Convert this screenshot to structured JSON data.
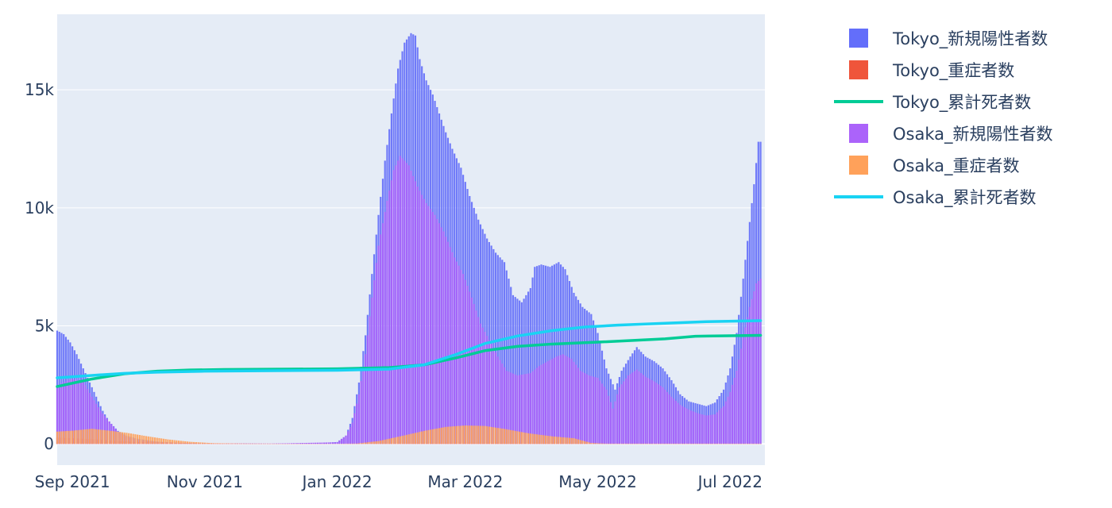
{
  "chart_data": {
    "type": "bar",
    "barmode": "overlay",
    "grid": true,
    "legend_position": "right",
    "x_range": [
      "2021-08-25",
      "2022-07-17"
    ],
    "y_range": [
      -900,
      18200
    ],
    "x_ticks": [
      {
        "date": "2021-09-01",
        "label": "Sep 2021"
      },
      {
        "date": "2021-11-01",
        "label": "Nov 2021"
      },
      {
        "date": "2022-01-01",
        "label": "Jan 2022"
      },
      {
        "date": "2022-03-01",
        "label": "Mar 2022"
      },
      {
        "date": "2022-05-01",
        "label": "May 2022"
      },
      {
        "date": "2022-07-01",
        "label": "Jul 2022"
      }
    ],
    "y_ticks": [
      {
        "value": 0,
        "label": "0"
      },
      {
        "value": 5000,
        "label": "5k"
      },
      {
        "value": 10000,
        "label": "10k"
      },
      {
        "value": 15000,
        "label": "15k"
      }
    ],
    "series": [
      {
        "name": "Tokyo_新規陽性者数",
        "kind": "bar",
        "color": "#636efa",
        "points": [
          [
            "2021-08-25",
            4800
          ],
          [
            "2021-08-28",
            4650
          ],
          [
            "2021-08-31",
            4300
          ],
          [
            "2021-09-03",
            3800
          ],
          [
            "2021-09-06",
            3200
          ],
          [
            "2021-09-09",
            2600
          ],
          [
            "2021-09-12",
            2000
          ],
          [
            "2021-09-15",
            1400
          ],
          [
            "2021-09-18",
            950
          ],
          [
            "2021-09-22",
            550
          ],
          [
            "2021-09-26",
            350
          ],
          [
            "2021-10-01",
            220
          ],
          [
            "2021-10-10",
            100
          ],
          [
            "2021-10-20",
            45
          ],
          [
            "2021-11-01",
            25
          ],
          [
            "2021-12-01",
            15
          ],
          [
            "2021-12-25",
            40
          ],
          [
            "2022-01-01",
            80
          ],
          [
            "2022-01-05",
            350
          ],
          [
            "2022-01-08",
            1100
          ],
          [
            "2022-01-11",
            2600
          ],
          [
            "2022-01-14",
            4600
          ],
          [
            "2022-01-17",
            7200
          ],
          [
            "2022-01-20",
            9700
          ],
          [
            "2022-01-23",
            12000
          ],
          [
            "2022-01-26",
            14000
          ],
          [
            "2022-01-29",
            15900
          ],
          [
            "2022-02-01",
            17000
          ],
          [
            "2022-02-04",
            17400
          ],
          [
            "2022-02-06",
            17300
          ],
          [
            "2022-02-08",
            16300
          ],
          [
            "2022-02-11",
            15400
          ],
          [
            "2022-02-14",
            14800
          ],
          [
            "2022-02-17",
            14000
          ],
          [
            "2022-02-20",
            13200
          ],
          [
            "2022-02-23",
            12500
          ],
          [
            "2022-02-27",
            11700
          ],
          [
            "2022-03-03",
            10500
          ],
          [
            "2022-03-07",
            9500
          ],
          [
            "2022-03-11",
            8700
          ],
          [
            "2022-03-15",
            8100
          ],
          [
            "2022-03-19",
            7700
          ],
          [
            "2022-03-23",
            6300
          ],
          [
            "2022-03-27",
            6000
          ],
          [
            "2022-03-31",
            6600
          ],
          [
            "2022-04-02",
            7500
          ],
          [
            "2022-04-05",
            7600
          ],
          [
            "2022-04-09",
            7500
          ],
          [
            "2022-04-13",
            7700
          ],
          [
            "2022-04-16",
            7400
          ],
          [
            "2022-04-20",
            6400
          ],
          [
            "2022-04-24",
            5800
          ],
          [
            "2022-04-28",
            5500
          ],
          [
            "2022-05-01",
            4700
          ],
          [
            "2022-05-05",
            3200
          ],
          [
            "2022-05-09",
            2300
          ],
          [
            "2022-05-12",
            3100
          ],
          [
            "2022-05-16",
            3700
          ],
          [
            "2022-05-19",
            4100
          ],
          [
            "2022-05-23",
            3700
          ],
          [
            "2022-05-27",
            3500
          ],
          [
            "2022-05-31",
            3200
          ],
          [
            "2022-06-04",
            2700
          ],
          [
            "2022-06-08",
            2100
          ],
          [
            "2022-06-12",
            1800
          ],
          [
            "2022-06-16",
            1700
          ],
          [
            "2022-06-20",
            1600
          ],
          [
            "2022-06-24",
            1750
          ],
          [
            "2022-06-28",
            2300
          ],
          [
            "2022-07-01",
            3200
          ],
          [
            "2022-07-04",
            4700
          ],
          [
            "2022-07-07",
            7000
          ],
          [
            "2022-07-10",
            9400
          ],
          [
            "2022-07-12",
            11000
          ],
          [
            "2022-07-14",
            12800
          ],
          [
            "2022-07-15",
            12800
          ]
        ]
      },
      {
        "name": "Tokyo_重症者数",
        "kind": "bar",
        "color": "#ef553b",
        "points": [
          [
            "2021-08-25",
            270
          ],
          [
            "2021-09-10",
            200
          ],
          [
            "2021-10-01",
            80
          ],
          [
            "2021-11-01",
            20
          ],
          [
            "2022-01-01",
            3
          ],
          [
            "2022-02-01",
            30
          ],
          [
            "2022-03-01",
            50
          ],
          [
            "2022-05-01",
            20
          ],
          [
            "2022-07-15",
            15
          ]
        ]
      },
      {
        "name": "Tokyo_累計死者数",
        "kind": "line",
        "color": "#00cc96",
        "points": [
          [
            "2021-08-25",
            2430
          ],
          [
            "2021-09-10",
            2750
          ],
          [
            "2021-09-25",
            2970
          ],
          [
            "2021-10-10",
            3080
          ],
          [
            "2021-10-25",
            3130
          ],
          [
            "2021-11-10",
            3150
          ],
          [
            "2022-01-01",
            3180
          ],
          [
            "2022-01-25",
            3230
          ],
          [
            "2022-02-10",
            3350
          ],
          [
            "2022-02-25",
            3650
          ],
          [
            "2022-03-10",
            3950
          ],
          [
            "2022-03-25",
            4130
          ],
          [
            "2022-04-10",
            4230
          ],
          [
            "2022-05-01",
            4310
          ],
          [
            "2022-06-01",
            4450
          ],
          [
            "2022-06-15",
            4560
          ],
          [
            "2022-07-15",
            4600
          ]
        ]
      },
      {
        "name": "Osaka_新規陽性者数",
        "kind": "bar",
        "color": "#ab63fa",
        "points": [
          [
            "2021-08-25",
            2500
          ],
          [
            "2021-09-01",
            2750
          ],
          [
            "2021-09-06",
            2650
          ],
          [
            "2021-09-10",
            2000
          ],
          [
            "2021-09-14",
            1400
          ],
          [
            "2021-09-18",
            950
          ],
          [
            "2021-09-22",
            520
          ],
          [
            "2021-09-26",
            300
          ],
          [
            "2021-10-01",
            180
          ],
          [
            "2021-10-10",
            80
          ],
          [
            "2021-11-01",
            20
          ],
          [
            "2021-12-01",
            10
          ],
          [
            "2022-01-01",
            70
          ],
          [
            "2022-01-05",
            350
          ],
          [
            "2022-01-08",
            900
          ],
          [
            "2022-01-11",
            2100
          ],
          [
            "2022-01-14",
            3800
          ],
          [
            "2022-01-17",
            6200
          ],
          [
            "2022-01-20",
            8400
          ],
          [
            "2022-01-24",
            10300
          ],
          [
            "2022-01-27",
            11600
          ],
          [
            "2022-01-30",
            12200
          ],
          [
            "2022-02-03",
            11800
          ],
          [
            "2022-02-07",
            10900
          ],
          [
            "2022-02-11",
            10200
          ],
          [
            "2022-02-15",
            9700
          ],
          [
            "2022-02-19",
            9000
          ],
          [
            "2022-02-24",
            7900
          ],
          [
            "2022-02-28",
            7200
          ],
          [
            "2022-03-04",
            6200
          ],
          [
            "2022-03-08",
            5100
          ],
          [
            "2022-03-12",
            4400
          ],
          [
            "2022-03-16",
            3700
          ],
          [
            "2022-03-20",
            3100
          ],
          [
            "2022-03-25",
            2900
          ],
          [
            "2022-03-31",
            3000
          ],
          [
            "2022-04-04",
            3300
          ],
          [
            "2022-04-08",
            3500
          ],
          [
            "2022-04-12",
            3700
          ],
          [
            "2022-04-15",
            3800
          ],
          [
            "2022-04-19",
            3600
          ],
          [
            "2022-04-23",
            3100
          ],
          [
            "2022-04-27",
            2900
          ],
          [
            "2022-05-01",
            2800
          ],
          [
            "2022-05-05",
            2300
          ],
          [
            "2022-05-08",
            1500
          ],
          [
            "2022-05-11",
            2400
          ],
          [
            "2022-05-15",
            2900
          ],
          [
            "2022-05-19",
            3150
          ],
          [
            "2022-05-23",
            2850
          ],
          [
            "2022-05-27",
            2650
          ],
          [
            "2022-05-31",
            2400
          ],
          [
            "2022-06-04",
            2000
          ],
          [
            "2022-06-08",
            1650
          ],
          [
            "2022-06-12",
            1450
          ],
          [
            "2022-06-16",
            1300
          ],
          [
            "2022-06-20",
            1200
          ],
          [
            "2022-06-24",
            1250
          ],
          [
            "2022-06-28",
            1600
          ],
          [
            "2022-07-01",
            2200
          ],
          [
            "2022-07-04",
            3100
          ],
          [
            "2022-07-07",
            4500
          ],
          [
            "2022-07-10",
            5800
          ],
          [
            "2022-07-13",
            6800
          ],
          [
            "2022-07-15",
            7000
          ]
        ]
      },
      {
        "name": "Osaka_重症者数",
        "kind": "bar",
        "color": "#ffa15a",
        "points": [
          [
            "2021-08-25",
            520
          ],
          [
            "2021-09-01",
            560
          ],
          [
            "2021-09-10",
            640
          ],
          [
            "2021-09-18",
            560
          ],
          [
            "2021-09-26",
            470
          ],
          [
            "2021-10-05",
            330
          ],
          [
            "2021-10-15",
            190
          ],
          [
            "2021-10-25",
            90
          ],
          [
            "2021-11-05",
            30
          ],
          [
            "2021-11-20",
            10
          ],
          [
            "2022-01-01",
            5
          ],
          [
            "2022-01-10",
            15
          ],
          [
            "2022-01-20",
            120
          ],
          [
            "2022-01-30",
            320
          ],
          [
            "2022-02-10",
            550
          ],
          [
            "2022-02-20",
            720
          ],
          [
            "2022-03-01",
            780
          ],
          [
            "2022-03-10",
            760
          ],
          [
            "2022-03-20",
            620
          ],
          [
            "2022-03-30",
            450
          ],
          [
            "2022-04-10",
            320
          ],
          [
            "2022-04-20",
            240
          ],
          [
            "2022-04-28",
            40
          ],
          [
            "2022-05-05",
            10
          ],
          [
            "2022-07-15",
            10
          ]
        ]
      },
      {
        "name": "Osaka_累計死者数",
        "kind": "line",
        "color": "#19d3f3",
        "points": [
          [
            "2021-08-25",
            2800
          ],
          [
            "2021-09-10",
            2900
          ],
          [
            "2021-09-25",
            2990
          ],
          [
            "2021-10-10",
            3040
          ],
          [
            "2021-11-01",
            3080
          ],
          [
            "2022-01-01",
            3120
          ],
          [
            "2022-01-25",
            3170
          ],
          [
            "2022-02-10",
            3350
          ],
          [
            "2022-02-25",
            3800
          ],
          [
            "2022-03-10",
            4250
          ],
          [
            "2022-03-25",
            4570
          ],
          [
            "2022-04-10",
            4800
          ],
          [
            "2022-04-25",
            4950
          ],
          [
            "2022-05-10",
            5030
          ],
          [
            "2022-06-01",
            5110
          ],
          [
            "2022-06-20",
            5180
          ],
          [
            "2022-07-15",
            5220
          ]
        ]
      }
    ]
  }
}
